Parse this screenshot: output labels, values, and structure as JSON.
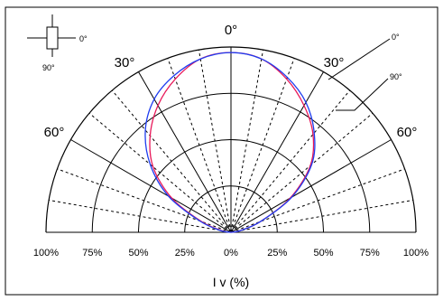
{
  "chart_data": {
    "type": "polar",
    "title": "",
    "xlabel": "I v (%)",
    "ylabel": "",
    "radial_range": [
      0,
      100
    ],
    "radial_ticks": [
      "100%",
      "75%",
      "50%",
      "25%",
      "0%",
      "25%",
      "50%",
      "75%",
      "100%"
    ],
    "angle_ticks": [
      "0°",
      "30°",
      "60°",
      "30°",
      "60°"
    ],
    "legend": {
      "icon_labels": [
        "0°",
        "90°"
      ],
      "line_labels": [
        "0°",
        "90°"
      ]
    },
    "series": [
      {
        "name": "0°",
        "color": "#e8195a",
        "angles": [
          -90,
          -80,
          -70,
          -60,
          -50,
          -40,
          -30,
          -20,
          -10,
          0,
          10,
          20,
          30,
          40,
          50,
          60,
          70,
          80,
          90
        ],
        "values": [
          0,
          5,
          17,
          37,
          55,
          68,
          79,
          88,
          95,
          97,
          95,
          88,
          79,
          69,
          56,
          37,
          17,
          5,
          0
        ]
      },
      {
        "name": "90°",
        "color": "#1e3cf0",
        "angles": [
          -90,
          -80,
          -70,
          -60,
          -50,
          -40,
          -30,
          -20,
          -10,
          0,
          10,
          20,
          30,
          40,
          50,
          60,
          70,
          80,
          90
        ],
        "values": [
          0,
          6,
          18,
          39,
          57,
          72,
          83,
          90,
          95,
          97,
          95,
          89,
          81,
          70,
          57,
          38,
          17,
          5,
          0
        ]
      }
    ]
  }
}
